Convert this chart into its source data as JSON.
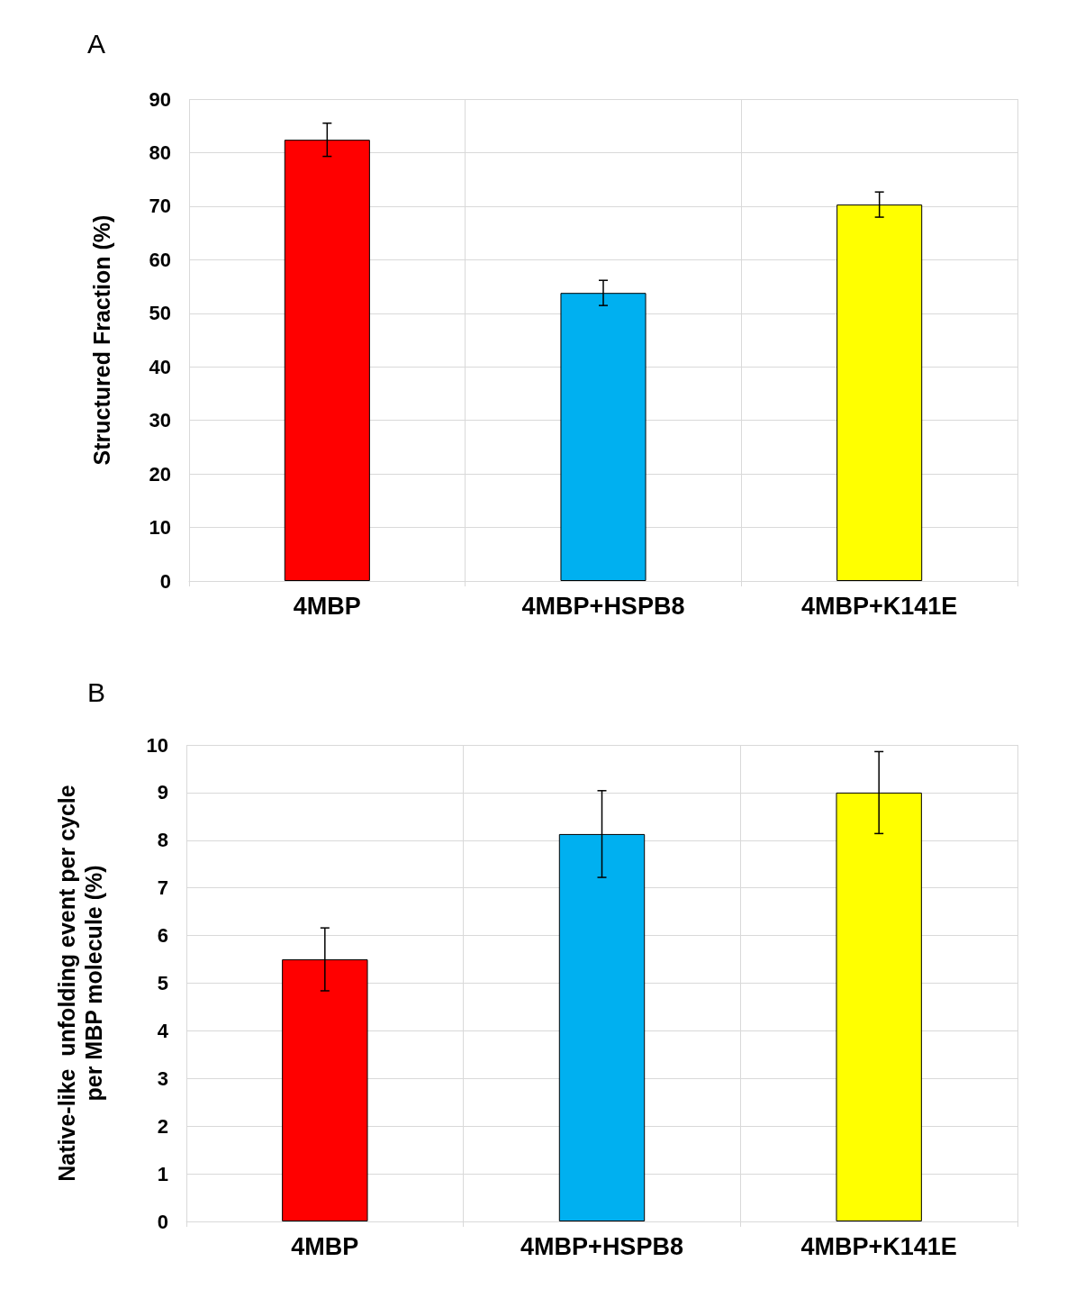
{
  "chart_data": [
    {
      "type": "bar",
      "title": "A",
      "ylabel": "Structured Fraction (%)",
      "categories": [
        "4MBP",
        "4MBP+HSPB8",
        "4MBP+K141E"
      ],
      "values": [
        82.4,
        53.8,
        70.3
      ],
      "errors": [
        3.1,
        2.35,
        2.35
      ],
      "colors": [
        "#ff0000",
        "#00b0f0",
        "#ffff00"
      ],
      "ylim": [
        0,
        90
      ],
      "yticks": [
        0,
        10,
        20,
        30,
        40,
        50,
        60,
        70,
        80,
        90
      ],
      "grid": true
    },
    {
      "type": "bar",
      "title": "B",
      "ylabel": "Native-like  unfolding event per cycle\nper MBP molecule (%)",
      "categories": [
        "4MBP",
        "4MBP+HSPB8",
        "4MBP+K141E"
      ],
      "values": [
        5.5,
        8.13,
        9.0
      ],
      "errors": [
        0.66,
        0.91,
        0.86
      ],
      "colors": [
        "#ff0000",
        "#00b0f0",
        "#ffff00"
      ],
      "ylim": [
        0,
        10
      ],
      "yticks": [
        0,
        1,
        2,
        3,
        4,
        5,
        6,
        7,
        8,
        9,
        10
      ],
      "grid": true
    }
  ]
}
